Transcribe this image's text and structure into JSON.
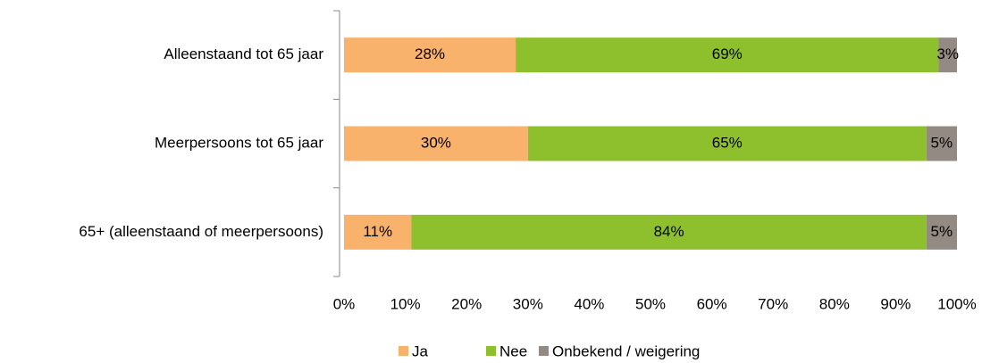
{
  "chart_data": {
    "type": "stacked-barh",
    "categories": [
      "Alleenstaand tot 65 jaar",
      "Meerpersoons tot 65 jaar",
      "65+ (alleenstaand of meerpersoons)"
    ],
    "series": [
      {
        "name": "Ja",
        "color": "#f9b26c",
        "values": [
          28,
          30,
          11
        ],
        "value_labels": [
          "28%",
          "30%",
          "11%"
        ]
      },
      {
        "name": "Nee",
        "color": "#8dc02c",
        "values": [
          69,
          65,
          84
        ],
        "value_labels": [
          "69%",
          "65%",
          "84%"
        ]
      },
      {
        "name": "Onbekend / weigering",
        "color": "#948a84",
        "values": [
          3,
          5,
          5
        ],
        "value_labels": [
          "3%",
          "5%",
          "5%"
        ]
      }
    ],
    "xlim": [
      0,
      100
    ],
    "xticks": [
      {
        "value": 0,
        "label": "0%"
      },
      {
        "value": 10,
        "label": "10%"
      },
      {
        "value": 20,
        "label": "20%"
      },
      {
        "value": 30,
        "label": "30%"
      },
      {
        "value": 40,
        "label": "40%"
      },
      {
        "value": 50,
        "label": "50%"
      },
      {
        "value": 60,
        "label": "60%"
      },
      {
        "value": 70,
        "label": "70%"
      },
      {
        "value": 80,
        "label": "80%"
      },
      {
        "value": 90,
        "label": "90%"
      },
      {
        "value": 100,
        "label": "100%"
      }
    ],
    "legend": "bottom"
  }
}
